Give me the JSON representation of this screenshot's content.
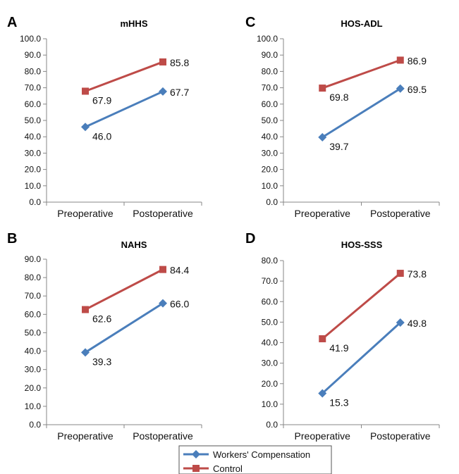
{
  "chart_data": [
    {
      "type": "line",
      "panel": "A",
      "title": "mHHS",
      "categories": [
        "Preoperative",
        "Postoperative"
      ],
      "ylim": [
        0,
        100
      ],
      "ytick_step": 10,
      "yticks": [
        "0.0",
        "10.0",
        "20.0",
        "30.0",
        "40.0",
        "50.0",
        "60.0",
        "70.0",
        "80.0",
        "90.0",
        "100.0"
      ],
      "series": [
        {
          "name": "Workers' Compensation",
          "values": [
            46.0,
            67.7
          ],
          "labels": [
            "46.0",
            "67.7"
          ]
        },
        {
          "name": "Control",
          "values": [
            67.9,
            85.8
          ],
          "labels": [
            "67.9",
            "85.8"
          ]
        }
      ]
    },
    {
      "type": "line",
      "panel": "C",
      "title": "HOS-ADL",
      "categories": [
        "Preoperative",
        "Postoperative"
      ],
      "ylim": [
        0,
        100
      ],
      "ytick_step": 10,
      "yticks": [
        "0.0",
        "10.0",
        "20.0",
        "30.0",
        "40.0",
        "50.0",
        "60.0",
        "70.0",
        "80.0",
        "90.0",
        "100.0"
      ],
      "series": [
        {
          "name": "Workers' Compensation",
          "values": [
            39.7,
            69.5
          ],
          "labels": [
            "39.7",
            "69.5"
          ]
        },
        {
          "name": "Control",
          "values": [
            69.8,
            86.9
          ],
          "labels": [
            "69.8",
            "86.9"
          ]
        }
      ]
    },
    {
      "type": "line",
      "panel": "B",
      "title": "NAHS",
      "categories": [
        "Preoperative",
        "Postoperative"
      ],
      "ylim": [
        0,
        90
      ],
      "ytick_step": 10,
      "yticks": [
        "0.0",
        "10.0",
        "20.0",
        "30.0",
        "40.0",
        "50.0",
        "60.0",
        "70.0",
        "80.0",
        "90.0"
      ],
      "series": [
        {
          "name": "Workers' Compensation",
          "values": [
            39.3,
            66.0
          ],
          "labels": [
            "39.3",
            "66.0"
          ]
        },
        {
          "name": "Control",
          "values": [
            62.6,
            84.4
          ],
          "labels": [
            "62.6",
            "84.4"
          ]
        }
      ]
    },
    {
      "type": "line",
      "panel": "D",
      "title": "HOS-SSS",
      "categories": [
        "Preoperative",
        "Postoperative"
      ],
      "ylim": [
        0,
        80
      ],
      "ytick_step": 10,
      "yticks": [
        "0.0",
        "10.0",
        "20.0",
        "30.0",
        "40.0",
        "50.0",
        "60.0",
        "70.0",
        "80.0"
      ],
      "series": [
        {
          "name": "Workers' Compensation",
          "values": [
            15.3,
            49.8
          ],
          "labels": [
            "15.3",
            "49.8"
          ]
        },
        {
          "name": "Control",
          "values": [
            41.9,
            73.8
          ],
          "labels": [
            "41.9",
            "73.8"
          ]
        }
      ]
    }
  ],
  "legend": {
    "placement": "bottom-center",
    "items": [
      {
        "name": "Workers' Compensation",
        "label": "Workers' Compensation",
        "color": "#4a7ebb",
        "marker": "diamond"
      },
      {
        "name": "Control",
        "label": "Control",
        "color": "#be4b48",
        "marker": "square"
      }
    ]
  },
  "colors": {
    "workers_compensation": "#4a7ebb",
    "control": "#be4b48",
    "axis": "#878787"
  }
}
